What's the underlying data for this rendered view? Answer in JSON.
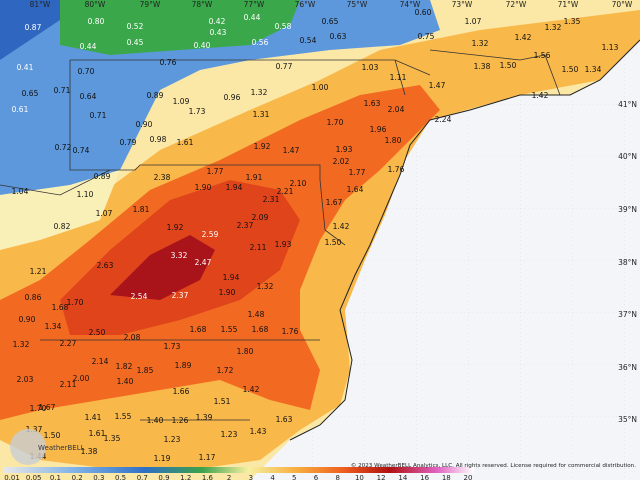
{
  "map": {
    "lon_labels": [
      "81°W",
      "80°W",
      "79°W",
      "78°W",
      "77°W",
      "76°W",
      "75°W",
      "74°W",
      "73°W",
      "72°W",
      "71°W",
      "70°W"
    ],
    "lat_labels": [
      "41°N",
      "40°N",
      "39°N",
      "38°N",
      "37°N",
      "36°N",
      "35°N"
    ],
    "values": [
      "0.87",
      "0.80",
      "0.52",
      "0.42",
      "0.44",
      "0.58",
      "0.65",
      "0.60",
      "1.07",
      "1.35",
      "0.44",
      "0.45",
      "0.40",
      "0.43",
      "0.56",
      "0.54",
      "0.63",
      "0.75",
      "1.32",
      "1.42",
      "1.32",
      "1.13",
      "0.41",
      "0.70",
      "0.76",
      "0.77",
      "1.03",
      "1.11",
      "1.38",
      "1.50",
      "1.56",
      "1.50",
      "1.34",
      "0.65",
      "0.71",
      "0.64",
      "0.89",
      "1.09",
      "0.96",
      "1.32",
      "1.00",
      "1.47",
      "1.42",
      "0.61",
      "0.71",
      "1.73",
      "1.31",
      "1.63",
      "2.04",
      "2.24",
      "0.90",
      "0.98",
      "1.61",
      "1.70",
      "1.96",
      "1.80",
      "0.72",
      "0.79",
      "0.74",
      "1.92",
      "1.47",
      "1.93",
      "2.02",
      "1.77",
      "1.76",
      "0.89",
      "1.77",
      "2.38",
      "1.90",
      "1.94",
      "1.91",
      "2.10",
      "2.21",
      "1.64",
      "1.04",
      "1.10",
      "2.31",
      "1.67",
      "1.07",
      "1.81",
      "2.09",
      "2.37",
      "1.42",
      "0.82",
      "1.92",
      "2.59",
      "2.11",
      "1.93",
      "1.50",
      "3.32",
      "2.47",
      "2.63",
      "1.21",
      "1.94",
      "1.32",
      "1.90",
      "2.54",
      "2.37",
      "0.86",
      "1.68",
      "1.70",
      "1.48",
      "0.90",
      "1.34",
      "2.50",
      "2.08",
      "1.68",
      "1.55",
      "1.68",
      "1.76",
      "1.32",
      "2.27",
      "1.73",
      "1.80",
      "2.14",
      "1.82",
      "1.85",
      "1.89",
      "1.72",
      "2.03",
      "2.00",
      "2.11",
      "1.40",
      "1.66",
      "1.42",
      "1.51",
      "1.70",
      "1.67",
      "1.41",
      "1.55",
      "1.40",
      "1.26",
      "1.39",
      "1.63",
      "1.37",
      "1.50",
      "1.61",
      "1.35",
      "1.23",
      "1.23",
      "1.43",
      "1.38",
      "1.44",
      "1.19",
      "1.17"
    ],
    "legend_ticks": [
      "0.01",
      "0.05",
      "0.1",
      "0.2",
      "0.3",
      "0.5",
      "0.7",
      "0.9",
      "1.2",
      "1.6",
      "2",
      "3",
      "4",
      "5",
      "6",
      "8",
      "10",
      "12",
      "14",
      "16",
      "18",
      "20"
    ],
    "credit": "© 2023 WeatherBELL Analytics, LLC. All rights reserved. License required for commercial distribution.",
    "logo": "WeatherBELL"
  }
}
